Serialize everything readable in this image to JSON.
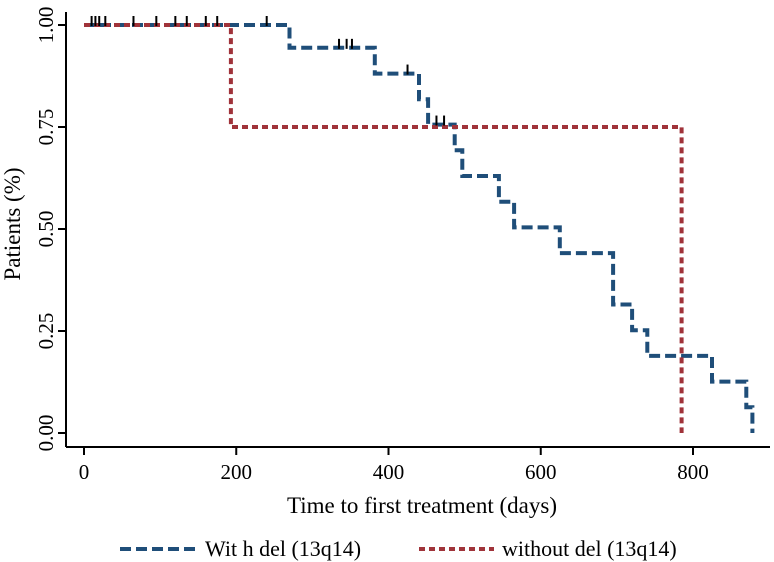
{
  "chart_data": {
    "type": "line",
    "title": "",
    "xlabel": "Time to first treatment (days)",
    "ylabel": "Patients (%)",
    "xlim": [
      -10,
      890
    ],
    "ylim": [
      -0.02,
      1.02
    ],
    "xticks": [
      0,
      200,
      400,
      600,
      800
    ],
    "xtick_labels": [
      "0",
      "200",
      "400",
      "600",
      "800"
    ],
    "yticks": [
      0,
      0.25,
      0.5,
      0.75,
      1.0
    ],
    "ytick_labels": [
      "0.00",
      "0.25",
      "0.50",
      "0.75",
      "1.00"
    ],
    "grid": false,
    "legend_position": "bottom",
    "series": [
      {
        "name": "Wit h del (13q14)",
        "color": "#1f4e79",
        "step_points": [
          [
            0,
            1.0
          ],
          [
            270,
            1.0
          ],
          [
            270,
            0.944
          ],
          [
            382,
            0.944
          ],
          [
            382,
            0.881
          ],
          [
            440,
            0.881
          ],
          [
            440,
            0.818
          ],
          [
            452,
            0.818
          ],
          [
            452,
            0.756
          ],
          [
            487,
            0.756
          ],
          [
            487,
            0.693
          ],
          [
            497,
            0.693
          ],
          [
            497,
            0.63
          ],
          [
            545,
            0.63
          ],
          [
            545,
            0.567
          ],
          [
            565,
            0.567
          ],
          [
            565,
            0.504
          ],
          [
            625,
            0.504
          ],
          [
            625,
            0.441
          ],
          [
            695,
            0.441
          ],
          [
            695,
            0.315
          ],
          [
            720,
            0.315
          ],
          [
            720,
            0.252
          ],
          [
            740,
            0.252
          ],
          [
            740,
            0.189
          ],
          [
            825,
            0.189
          ],
          [
            825,
            0.126
          ],
          [
            870,
            0.126
          ],
          [
            870,
            0.063
          ],
          [
            878,
            0.063
          ],
          [
            878,
            0.0
          ]
        ],
        "censored": [
          10,
          15,
          20,
          28,
          65,
          95,
          120,
          135,
          160,
          175,
          240,
          335,
          345,
          352,
          425,
          463,
          473
        ]
      },
      {
        "name": "without del (13q14)",
        "color": "#a0333a",
        "step_points": [
          [
            0,
            1.0
          ],
          [
            193,
            1.0
          ],
          [
            193,
            0.75
          ],
          [
            785,
            0.75
          ],
          [
            785,
            0.0
          ]
        ],
        "censored": []
      }
    ]
  }
}
